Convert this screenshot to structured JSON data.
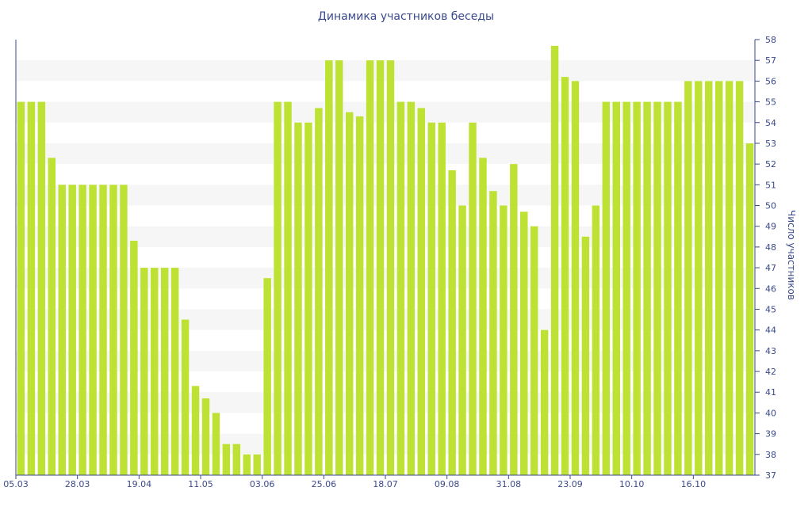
{
  "chart_data": {
    "type": "bar",
    "title": "Динамика участников беседы",
    "xlabel": "",
    "ylabel": "Число участников",
    "ylim": [
      37,
      58
    ],
    "grid": "alternating horizontal bands",
    "y_axis_position": "right",
    "bar_color": "#bde234",
    "band_color": "#f6f6f6",
    "axis_color": "#3a4a8c",
    "x_tick_labels": [
      "05.03",
      "28.03",
      "19.04",
      "11.05",
      "03.06",
      "25.06",
      "18.07",
      "09.08",
      "31.08",
      "23.09",
      "10.10",
      "16.10"
    ],
    "y_tick_labels": [
      "37",
      "38",
      "39",
      "40",
      "41",
      "42",
      "43",
      "44",
      "45",
      "46",
      "47",
      "48",
      "49",
      "50",
      "51",
      "52",
      "53",
      "54",
      "55",
      "56",
      "57",
      "58"
    ],
    "values": [
      55,
      55,
      55,
      52.3,
      51,
      51,
      51,
      51,
      51,
      51,
      51,
      48.3,
      47,
      47,
      47,
      47,
      44.5,
      41.3,
      40.7,
      40,
      38.5,
      38.5,
      38,
      38,
      46.5,
      55,
      55,
      54,
      54,
      54.7,
      57,
      57,
      54.5,
      54.3,
      57,
      57,
      57,
      55,
      55,
      54.7,
      54,
      54,
      51.7,
      50,
      54,
      52.3,
      50.7,
      50,
      52,
      49.7,
      49,
      44,
      57.7,
      56.2,
      56,
      48.5,
      50,
      55,
      55,
      55,
      55,
      55,
      55,
      55,
      55,
      56,
      56,
      56,
      56,
      56,
      56,
      53
    ]
  }
}
